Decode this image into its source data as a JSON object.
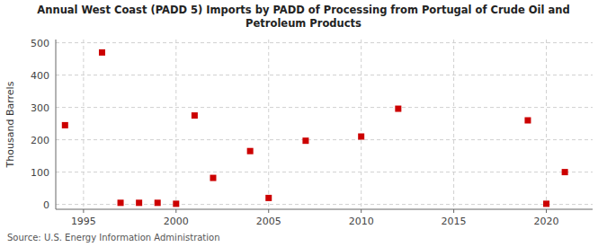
{
  "chart_data": {
    "type": "scatter",
    "title": "Annual West Coast (PADD 5) Imports by PADD of Processing from Portugal of Crude Oil and\nPetroleum Products",
    "ylabel": "Thousand Barrels",
    "annotations": [
      "Source: U.S. Energy Information Administration"
    ],
    "x": [
      1994,
      1996,
      1997,
      1998,
      1999,
      2000,
      2001,
      2002,
      2004,
      2005,
      2007,
      2010,
      2012,
      2019,
      2020,
      2021
    ],
    "values": [
      245,
      470,
      5,
      5,
      5,
      2,
      275,
      82,
      165,
      20,
      197,
      210,
      296,
      260,
      2,
      100
    ],
    "color": "#cc0000",
    "marker": "square",
    "xlim": [
      1993.5,
      2022.5
    ],
    "ylim": [
      -15,
      510
    ],
    "xticks": [
      1995,
      2000,
      2005,
      2010,
      2015,
      2020
    ],
    "yticks": [
      0,
      100,
      200,
      300,
      400,
      500
    ],
    "grid": true
  }
}
